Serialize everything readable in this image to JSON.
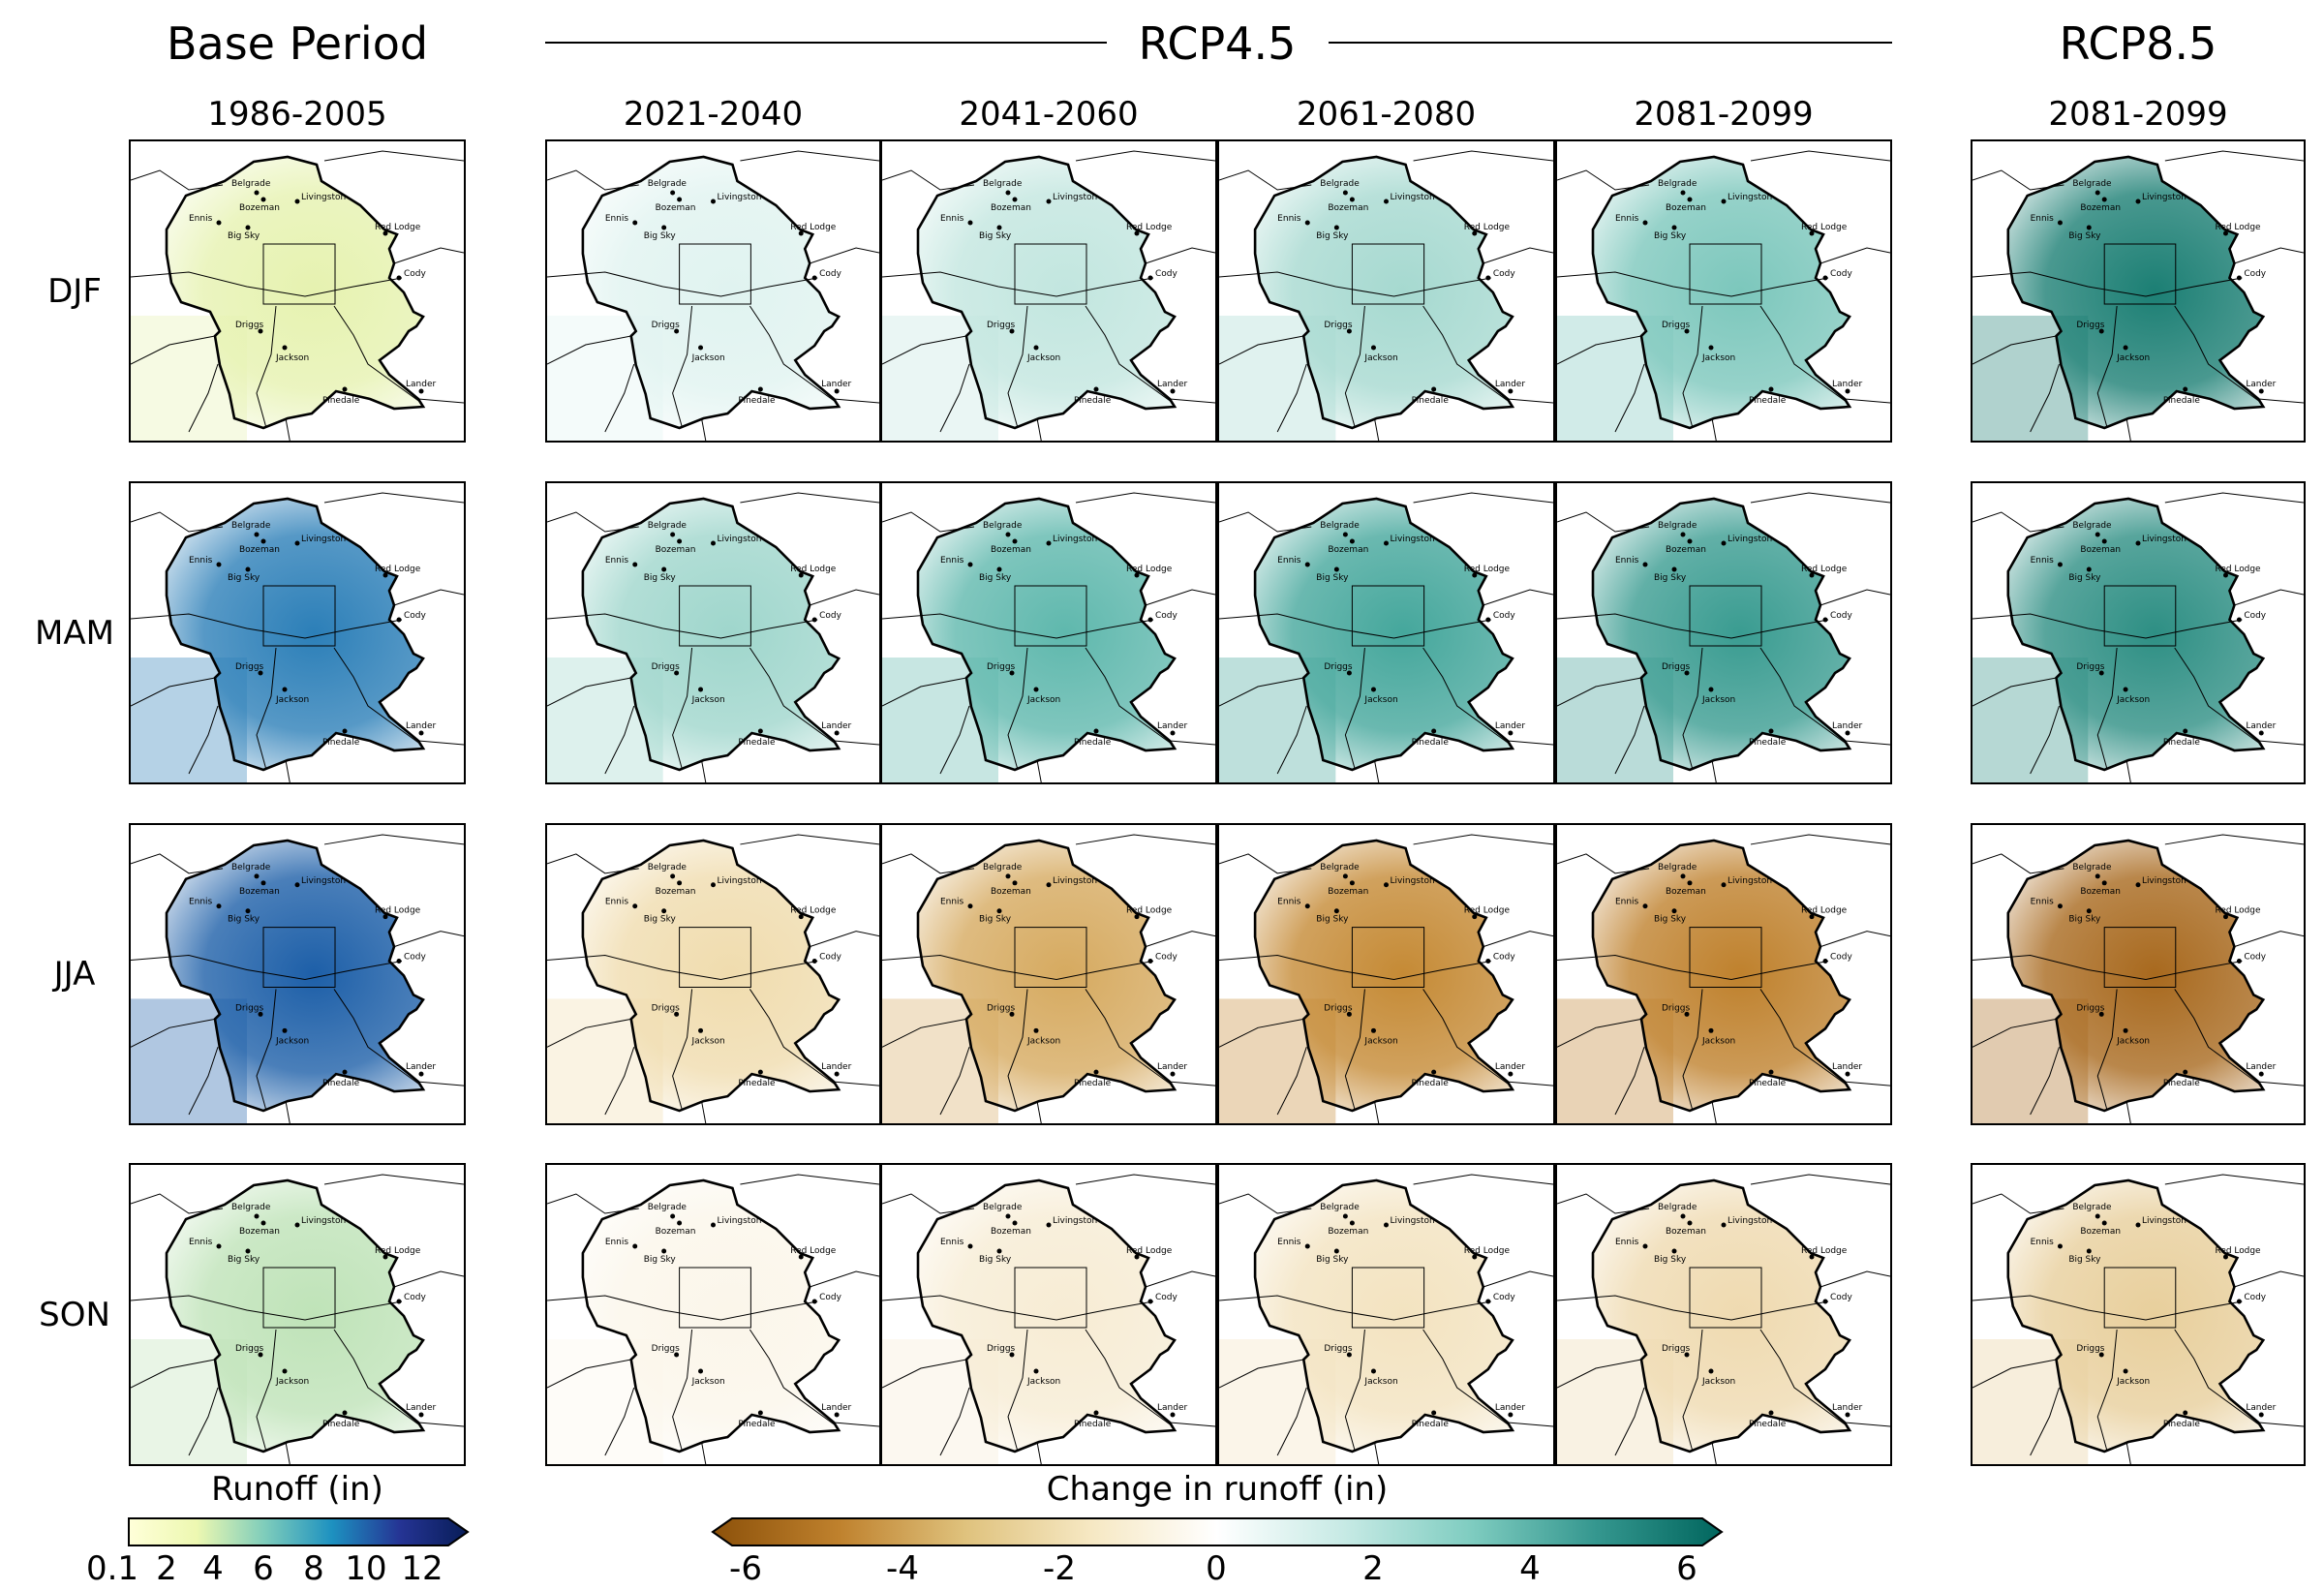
{
  "headers": {
    "base": "Base Period",
    "rcp45": "RCP4.5",
    "rcp85": "RCP8.5"
  },
  "periods": [
    "1986-2005",
    "2021-2040",
    "2041-2060",
    "2061-2080",
    "2081-2099",
    "2081-2099"
  ],
  "seasons": [
    "DJF",
    "MAM",
    "JJA",
    "SON"
  ],
  "cities": [
    "Belgrade",
    "Bozeman",
    "Livingston",
    "Ennis",
    "Big Sky",
    "Red Lodge",
    "Cody",
    "Driggs",
    "Jackson",
    "Pinedale",
    "Lander"
  ],
  "colorbars": {
    "runoff": {
      "label": "Runoff (in)",
      "ticks": [
        "0.1",
        "2",
        "4",
        "6",
        "8",
        "10",
        "12"
      ],
      "colors": [
        "#ffffd9",
        "#edf8b1",
        "#7fcdbb",
        "#1d91c0",
        "#253494",
        "#081d58"
      ],
      "extend": "max"
    },
    "change": {
      "label": "Change in runoff (in)",
      "ticks": [
        "-6",
        "-4",
        "-2",
        "0",
        "2",
        "4",
        "6"
      ],
      "colors": [
        "#8c510a",
        "#bf812d",
        "#dfc27d",
        "#f6e8c3",
        "#ffffff",
        "#c7eae5",
        "#80cdc1",
        "#35978f",
        "#01665e"
      ],
      "extend": "both"
    }
  },
  "panels": [
    [
      "#e6f2b0",
      "#e0f3f0",
      "#c2e6df",
      "#a6d9d0",
      "#7cc7bc",
      "#1c7f74"
    ],
    [
      "#2c7fb8",
      "#9fd6cc",
      "#5fb8ad",
      "#45a79c",
      "#3a9c91",
      "#2e8f84"
    ],
    [
      "#1d5fa8",
      "#f0dcae",
      "#d6aa60",
      "#c58a35",
      "#bf812d",
      "#a8691e"
    ],
    [
      "#bfe3b8",
      "#fbf6ea",
      "#f7ecd4",
      "#f3e3c0",
      "#efdab0",
      "#e8cf9c"
    ]
  ]
}
